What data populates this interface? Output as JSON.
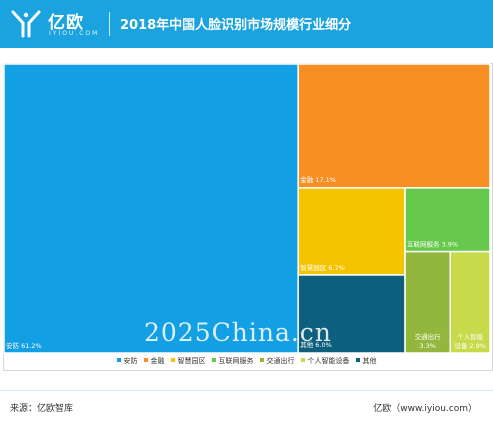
{
  "header": {
    "logo_cn": "亿欧",
    "logo_en": "IYIOU.COM",
    "title": "2018年中国人脸识别市场规模行业细分"
  },
  "colors": {
    "header_bg": "#1aa3de"
  },
  "chart_data": {
    "type": "treemap",
    "title": "2018年中国人脸识别市场规模行业细分",
    "unit": "%",
    "items": [
      {
        "name": "安防",
        "value": 61.2,
        "label": "安防 61.2%",
        "color": "#139fe3"
      },
      {
        "name": "金融",
        "value": 17.1,
        "label": "金融 17.1%",
        "color": "#f78f24"
      },
      {
        "name": "智慧园区",
        "value": 6.7,
        "label": "智慧园区 6.7%",
        "color": "#f5c400"
      },
      {
        "name": "其他",
        "value": 6.0,
        "label": "其他 6.0%",
        "color": "#0d5f7d"
      },
      {
        "name": "互联网服务",
        "value": 3.9,
        "label": "互联网服务 3.9%",
        "color": "#66c94c"
      },
      {
        "name": "交通出行",
        "value": 3.3,
        "label": "交通出行 3.3%",
        "color": "#93b73c"
      },
      {
        "name": "个人智能设备",
        "value": 2.9,
        "label": "个人智能设备 2.9%",
        "color": "#c6da4a"
      }
    ],
    "legend": [
      "安防",
      "金融",
      "智慧园区",
      "互联网服务",
      "交通出行",
      "个人智能设备",
      "其他"
    ],
    "legend_colors": [
      "#139fe3",
      "#f78f24",
      "#f5c400",
      "#66c94c",
      "#93b73c",
      "#c6da4a",
      "#0d5f7d"
    ],
    "legend_position": "bottom"
  },
  "watermark": "2025China.cn",
  "footer": {
    "source": "来源：亿欧智库",
    "credit": "亿欧（www.iyiou.com）"
  }
}
